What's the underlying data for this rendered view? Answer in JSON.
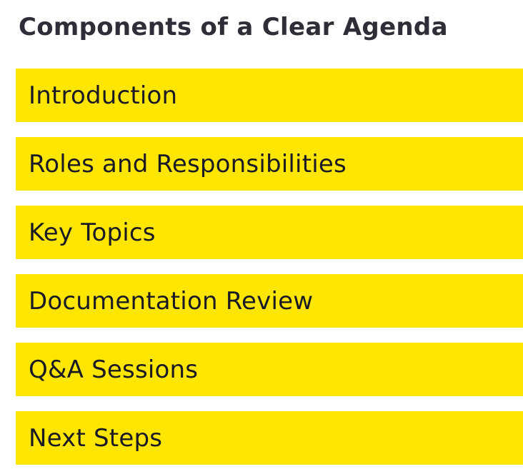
{
  "title": "Components of a Clear Agenda",
  "accent_color": "#ffe600",
  "items": [
    {
      "label": "Introduction"
    },
    {
      "label": "Roles and Responsibilities"
    },
    {
      "label": "Key Topics"
    },
    {
      "label": "Documentation Review"
    },
    {
      "label": "Q&A Sessions"
    },
    {
      "label": "Next Steps"
    }
  ]
}
